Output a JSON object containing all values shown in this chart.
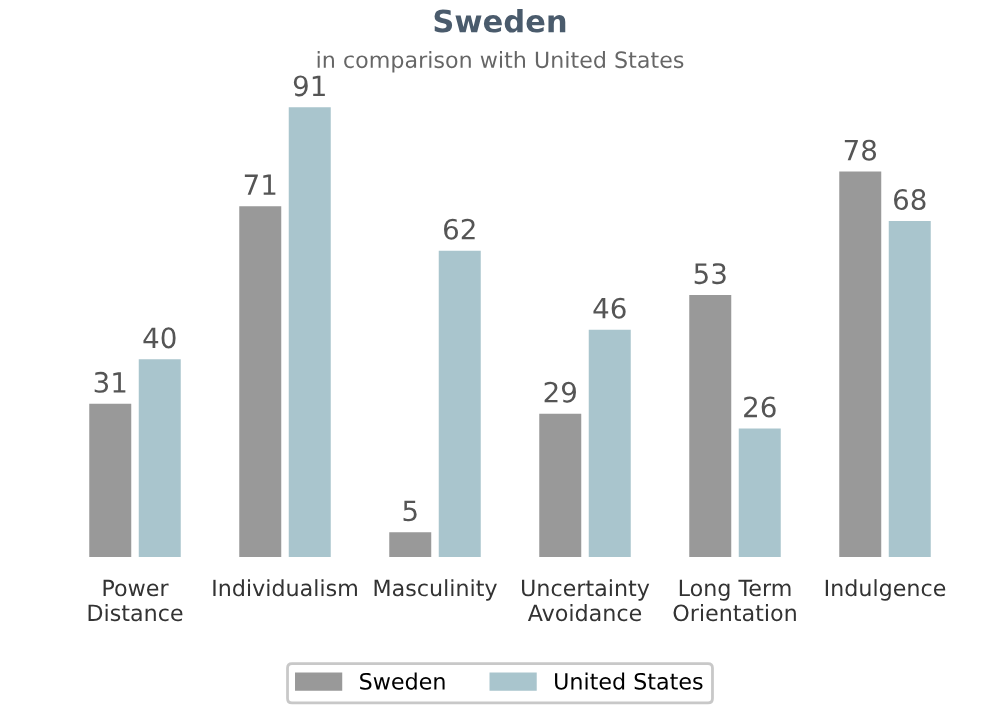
{
  "chart_data": {
    "type": "bar",
    "title": "Sweden",
    "subtitle": "in comparison with United States",
    "categories": [
      "Power\nDistance",
      "Individualism",
      "Masculinity",
      "Uncertainty\nAvoidance",
      "Long Term\nOrientation",
      "Indulgence"
    ],
    "series": [
      {
        "name": "Sweden",
        "color": "#999999",
        "values": [
          31,
          71,
          5,
          29,
          53,
          78
        ]
      },
      {
        "name": "United States",
        "color": "#a9c5cd",
        "values": [
          40,
          91,
          62,
          46,
          26,
          68
        ]
      }
    ],
    "data_labels": true,
    "legend": "bottom",
    "grid": false
  }
}
